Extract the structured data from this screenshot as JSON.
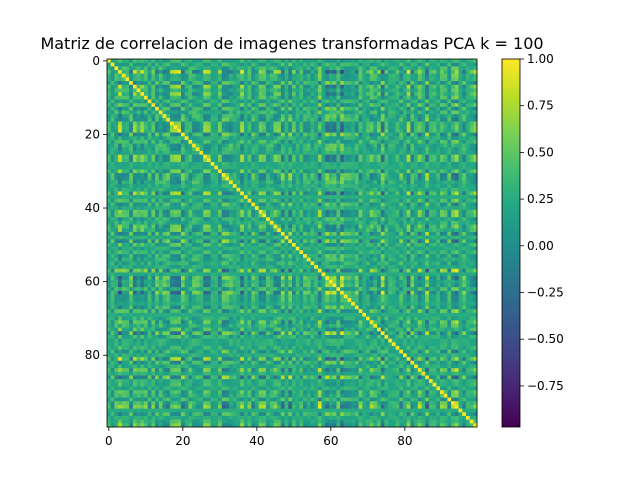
{
  "chart_data": {
    "type": "heatmap",
    "title": "Matriz de correlacion de imagenes transformadas PCA k = 100",
    "rows": 100,
    "cols": 100,
    "x_ticks": [
      "0",
      "20",
      "40",
      "60",
      "80"
    ],
    "y_ticks": [
      "0",
      "20",
      "40",
      "60",
      "80"
    ],
    "colorbar": {
      "colormap": "viridis",
      "vmin": -0.97,
      "vmax": 1.0,
      "ticks": [
        "1.00",
        "0.75",
        "0.50",
        "0.25",
        "0.00",
        "−0.25",
        "−0.50",
        "−0.75"
      ]
    },
    "diagonal_value": 1.0,
    "grid": false
  }
}
